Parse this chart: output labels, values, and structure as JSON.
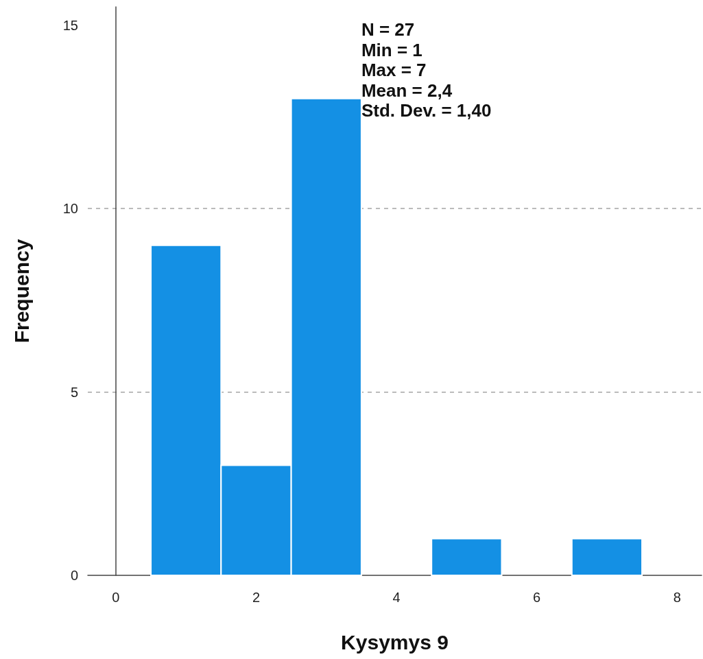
{
  "chart_data": {
    "type": "histogram",
    "xlabel": "Kysymys 9",
    "ylabel": "Frequency",
    "bins": [
      0.5,
      1.5,
      2.5,
      3.5,
      4.5,
      5.5,
      6.5,
      7.5
    ],
    "values": [
      9,
      3,
      13,
      0,
      1,
      0,
      1
    ],
    "color": "#1490e4",
    "xlim": [
      -0.4,
      8.35
    ],
    "xticks": [
      0,
      2,
      4,
      6,
      8
    ],
    "ylim": [
      0,
      15.5
    ],
    "yticks": [
      0,
      5,
      10,
      15
    ],
    "grid": "y",
    "annotations": [
      "N = 27",
      "Min = 1",
      "Max = 7",
      "Mean = 2,4",
      "Std. Dev. = 1,40"
    ]
  }
}
